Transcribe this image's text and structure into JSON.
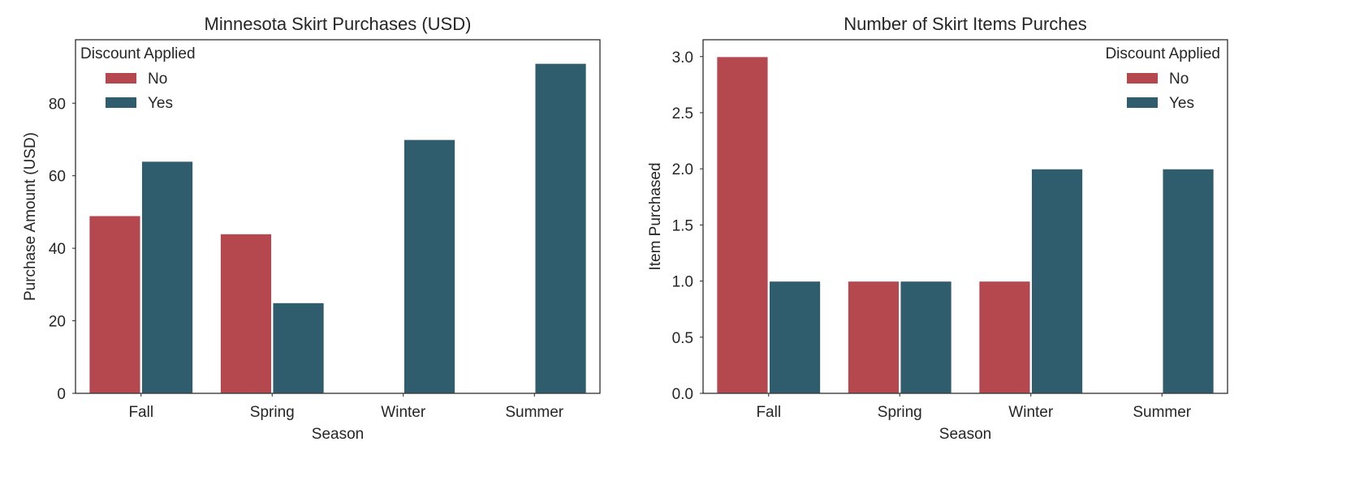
{
  "chart_data": [
    {
      "type": "bar",
      "title": "Minnesota Skirt Purchases (USD)",
      "xlabel": "Season",
      "ylabel": "Purchase Amount (USD)",
      "categories": [
        "Fall",
        "Spring",
        "Winter",
        "Summer"
      ],
      "ylim": [
        0,
        97.5
      ],
      "yticks": [
        0,
        20,
        40,
        60,
        80
      ],
      "ytick_labels": [
        "0",
        "20",
        "40",
        "60",
        "80"
      ],
      "legend": {
        "title": "Discount Applied",
        "position": "top-left"
      },
      "series": [
        {
          "name": "No",
          "color": "#b5474f",
          "values": [
            49,
            44,
            null,
            null
          ]
        },
        {
          "name": "Yes",
          "color": "#2f5d6d",
          "values": [
            64,
            25,
            70,
            91
          ]
        }
      ],
      "grid": false
    },
    {
      "type": "bar",
      "title": "Number of Skirt Items Purches",
      "xlabel": "Season",
      "ylabel": "Item Purchased",
      "categories": [
        "Fall",
        "Spring",
        "Winter",
        "Summer"
      ],
      "ylim": [
        0,
        3.15
      ],
      "yticks": [
        0,
        0.5,
        1,
        1.5,
        2,
        2.5,
        3
      ],
      "ytick_labels": [
        "0.0",
        "0.5",
        "1.0",
        "1.5",
        "2.0",
        "2.5",
        "3.0"
      ],
      "legend": {
        "title": "Discount Applied",
        "position": "top-right"
      },
      "series": [
        {
          "name": "No",
          "color": "#b5474f",
          "values": [
            3,
            1,
            1,
            null
          ]
        },
        {
          "name": "Yes",
          "color": "#2f5d6d",
          "values": [
            1,
            1,
            2,
            2
          ]
        }
      ],
      "grid": false
    }
  ]
}
